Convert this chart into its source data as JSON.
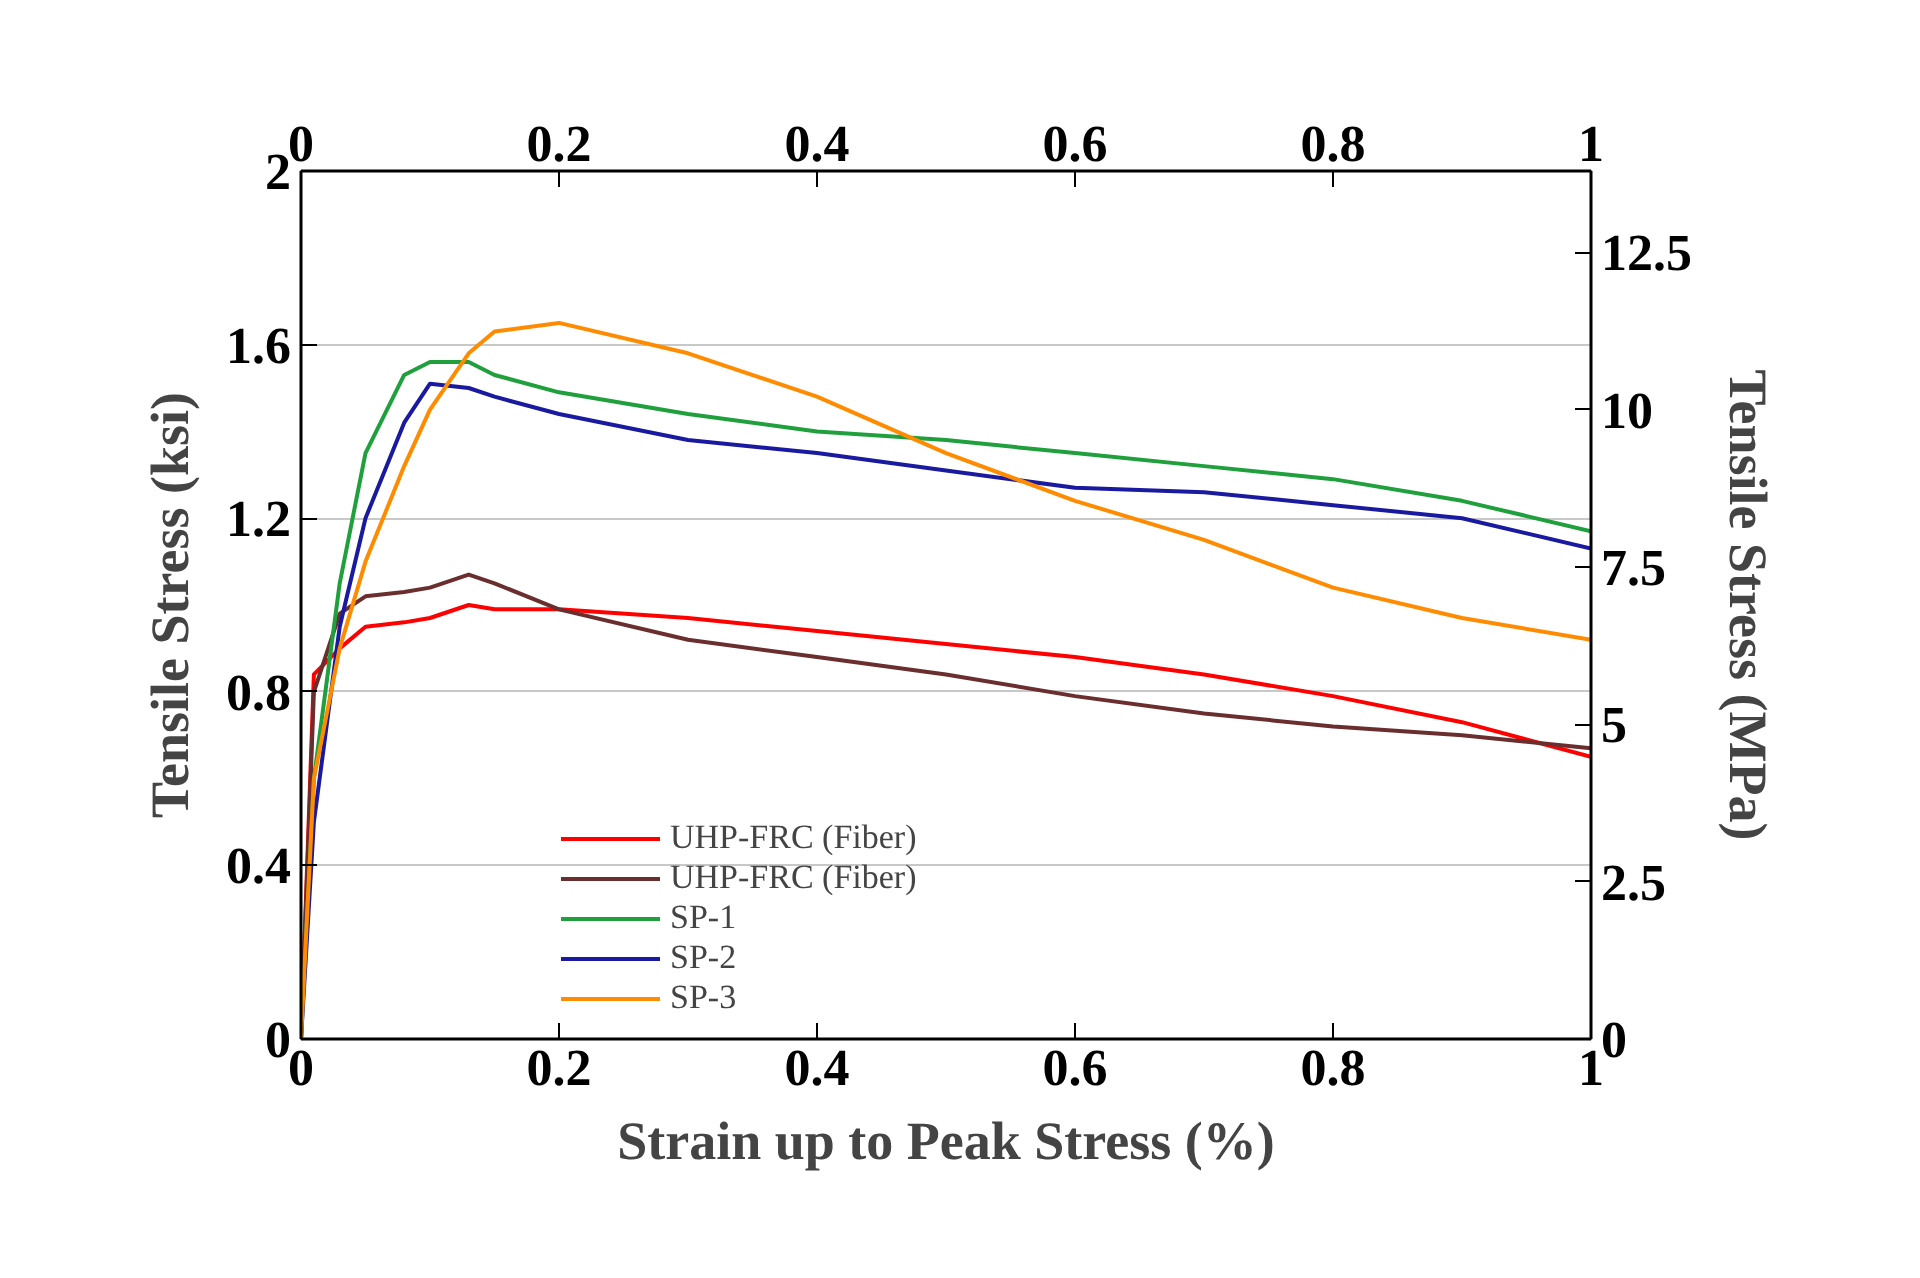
{
  "chart_data": {
    "type": "line",
    "xlabel": "Strain up to Peak Stress (%)",
    "ylabel": "Tensile Stress (ksi)",
    "y2label": "Tensile Stress (MPa)",
    "xlim": [
      0,
      1
    ],
    "xticks": [
      0,
      0.2,
      0.4,
      0.6,
      0.8,
      1
    ],
    "x2lim": [
      0,
      1
    ],
    "x2ticks": [
      0,
      0.2,
      0.4,
      0.6,
      0.8,
      1
    ],
    "ylim": [
      0,
      2
    ],
    "yticks": [
      0,
      0.4,
      0.8,
      1.2,
      1.6,
      2
    ],
    "y2lim": [
      0,
      13.79
    ],
    "y2ticks": [
      0,
      2.5,
      5,
      7.5,
      10,
      12.5
    ],
    "grid": "y",
    "legend": "bottom",
    "line_style": "solid",
    "marker": "none",
    "x": [
      0,
      0.01,
      0.03,
      0.05,
      0.08,
      0.1,
      0.13,
      0.15,
      0.2,
      0.3,
      0.4,
      0.5,
      0.6,
      0.7,
      0.8,
      0.9,
      1.0
    ],
    "series": [
      {
        "name": "UHP-FRC (Fiber)",
        "color": "#ff0000",
        "values": [
          0,
          0.84,
          0.9,
          0.95,
          0.96,
          0.97,
          1.0,
          0.99,
          0.99,
          0.97,
          0.94,
          0.91,
          0.88,
          0.84,
          0.79,
          0.73,
          0.65
        ]
      },
      {
        "name": "UHP-FRC (Fiber)",
        "color": "#6b2e2e",
        "values": [
          0,
          0.8,
          0.98,
          1.02,
          1.03,
          1.04,
          1.07,
          1.05,
          0.99,
          0.92,
          0.88,
          0.84,
          0.79,
          0.75,
          0.72,
          0.7,
          0.67
        ]
      },
      {
        "name": "SP-1",
        "color": "#1fa03c",
        "values": [
          0,
          0.6,
          1.05,
          1.35,
          1.53,
          1.56,
          1.56,
          1.53,
          1.49,
          1.44,
          1.4,
          1.38,
          1.35,
          1.32,
          1.29,
          1.24,
          1.17
        ]
      },
      {
        "name": "SP-2",
        "color": "#1a1aa0",
        "values": [
          0,
          0.5,
          0.95,
          1.2,
          1.42,
          1.51,
          1.5,
          1.48,
          1.44,
          1.38,
          1.35,
          1.31,
          1.27,
          1.26,
          1.23,
          1.2,
          1.13
        ]
      },
      {
        "name": "SP-3",
        "color": "#ff8c00",
        "values": [
          0,
          0.6,
          0.9,
          1.1,
          1.32,
          1.45,
          1.58,
          1.63,
          1.65,
          1.58,
          1.48,
          1.35,
          1.24,
          1.15,
          1.04,
          0.97,
          0.92
        ]
      }
    ]
  }
}
